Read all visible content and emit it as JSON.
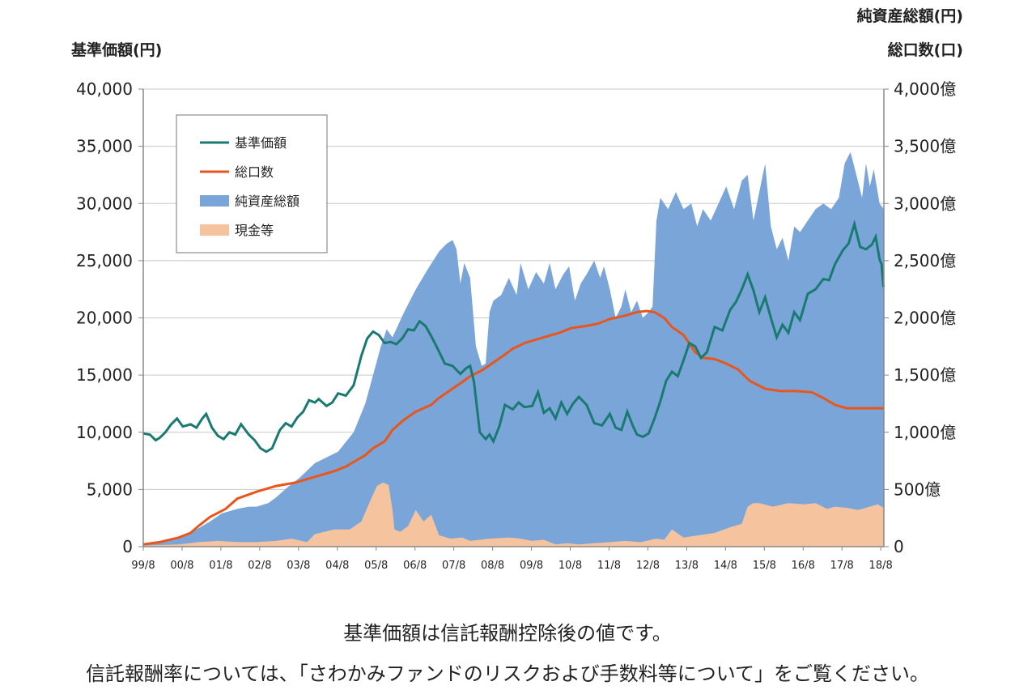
{
  "captions": {
    "line1": "基準価額は信託報酬控除後の値です。",
    "line2": "信託報酬率については、「さわかみファンドのリスクおよび手数料等について」をご覧ください。"
  },
  "chart_data": {
    "type": "area",
    "left_axis_title": "基準価額(円)",
    "right_axis_title_1": "純資産総額(円)",
    "right_axis_title_2": "総口数(口)",
    "ylim_left": [
      0,
      40000
    ],
    "ylim_right": [
      0,
      4000
    ],
    "left_ticks": [
      "0",
      "5,000",
      "10,000",
      "15,000",
      "20,000",
      "25,000",
      "30,000",
      "35,000",
      "40,000"
    ],
    "right_ticks": [
      "0",
      "500億",
      "1,000億",
      "1,500億",
      "2,000億",
      "2,500億",
      "3,000億",
      "3,500億",
      "4,000億"
    ],
    "x_ticks": [
      "99/8",
      "00/8",
      "01/8",
      "02/8",
      "03/8",
      "04/8",
      "05/8",
      "06/8",
      "07/8",
      "08/8",
      "09/8",
      "10/8",
      "11/8",
      "12/8",
      "13/8",
      "14/8",
      "15/8",
      "16/8",
      "17/8",
      "18/8"
    ],
    "grid": true,
    "legend_position": "top-left",
    "colors": {
      "nav": "#1a7a72",
      "units": "#e8561c",
      "assets": "#7aa5d8",
      "cash": "#f5c49e",
      "grid": "#c8c8c8"
    },
    "series": [
      {
        "name": "基準価額",
        "axis": "left",
        "kind": "line",
        "x": [
          1999.58,
          1999.75,
          1999.9,
          2000.0,
          2000.15,
          2000.3,
          2000.45,
          2000.6,
          2000.8,
          2000.95,
          2001.1,
          2001.2,
          2001.35,
          2001.5,
          2001.65,
          2001.8,
          2001.95,
          2002.1,
          2002.3,
          2002.45,
          2002.6,
          2002.75,
          2002.9,
          2003.1,
          2003.25,
          2003.4,
          2003.55,
          2003.7,
          2003.85,
          2004.0,
          2004.1,
          2004.3,
          2004.45,
          2004.6,
          2004.8,
          2005.0,
          2005.2,
          2005.35,
          2005.5,
          2005.65,
          2005.8,
          2005.95,
          2006.1,
          2006.25,
          2006.4,
          2006.55,
          2006.7,
          2006.85,
          2007.0,
          2007.15,
          2007.35,
          2007.55,
          2007.75,
          2007.9,
          2008.0,
          2008.1,
          2008.25,
          2008.4,
          2008.5,
          2008.6,
          2008.75,
          2008.9,
          2009.1,
          2009.25,
          2009.4,
          2009.6,
          2009.75,
          2009.9,
          2010.05,
          2010.2,
          2010.35,
          2010.5,
          2010.65,
          2010.8,
          2011.0,
          2011.2,
          2011.4,
          2011.6,
          2011.75,
          2011.9,
          2012.05,
          2012.2,
          2012.3,
          2012.45,
          2012.6,
          2012.75,
          2012.9,
          2013.05,
          2013.2,
          2013.35,
          2013.5,
          2013.65,
          2013.8,
          2013.95,
          2014.1,
          2014.3,
          2014.5,
          2014.7,
          2014.85,
          2015.0,
          2015.15,
          2015.3,
          2015.45,
          2015.6,
          2015.75,
          2015.9,
          2016.05,
          2016.2,
          2016.35,
          2016.5,
          2016.7,
          2016.9,
          2017.1,
          2017.25,
          2017.4,
          2017.6,
          2017.75,
          2017.9,
          2018.05,
          2018.2,
          2018.35,
          2018.45,
          2018.55,
          2018.6,
          2018.65
        ],
        "values": [
          9900,
          9800,
          9300,
          9500,
          10000,
          10700,
          11200,
          10500,
          10700,
          10400,
          11200,
          11600,
          10400,
          9700,
          9400,
          10000,
          9800,
          10700,
          9800,
          9300,
          8600,
          8300,
          8600,
          10200,
          10800,
          10500,
          11300,
          11800,
          12800,
          12600,
          12900,
          12300,
          12600,
          13400,
          13200,
          14100,
          16700,
          18200,
          18800,
          18500,
          17800,
          17900,
          17700,
          18200,
          19000,
          18900,
          19700,
          19300,
          18400,
          17400,
          16000,
          15800,
          15100,
          15600,
          15800,
          14400,
          10000,
          9400,
          9800,
          9200,
          10500,
          12400,
          12000,
          12600,
          12200,
          12300,
          13500,
          11700,
          12100,
          11200,
          12600,
          11600,
          12500,
          13100,
          12400,
          10800,
          10600,
          11600,
          10400,
          10200,
          11800,
          10500,
          9800,
          9600,
          9900,
          11200,
          12700,
          14500,
          15300,
          14900,
          16300,
          17800,
          17500,
          16500,
          17000,
          19200,
          18900,
          20700,
          21400,
          22500,
          23800,
          22400,
          20500,
          21800,
          20000,
          18300,
          19400,
          18700,
          20500,
          19800,
          22100,
          22500,
          23400,
          23300,
          24700,
          25900,
          26500,
          28200,
          26200,
          26000,
          26400,
          27100,
          25100,
          24700,
          22700
        ]
      },
      {
        "name": "総口数",
        "axis": "right",
        "kind": "line",
        "x": [
          1999.58,
          2000.0,
          2000.5,
          2000.8,
          2001.0,
          2001.3,
          2001.7,
          2002.0,
          2002.5,
          2003.0,
          2003.5,
          2004.0,
          2004.5,
          2004.8,
          2005.0,
          2005.3,
          2005.5,
          2005.8,
          2006.0,
          2006.3,
          2006.6,
          2007.0,
          2007.2,
          2007.5,
          2007.8,
          2008.0,
          2008.3,
          2008.6,
          2008.9,
          2009.1,
          2009.4,
          2009.7,
          2010.0,
          2010.3,
          2010.6,
          2011.0,
          2011.3,
          2011.6,
          2012.0,
          2012.3,
          2012.55,
          2012.75,
          2013.0,
          2013.2,
          2013.5,
          2013.8,
          2014.0,
          2014.3,
          2014.6,
          2014.9,
          2015.2,
          2015.6,
          2016.0,
          2016.4,
          2016.8,
          2017.1,
          2017.4,
          2017.7,
          2018.0,
          2018.3,
          2018.66
        ],
        "values": [
          20,
          40,
          80,
          120,
          180,
          260,
          330,
          420,
          480,
          530,
          560,
          610,
          660,
          700,
          740,
          800,
          860,
          920,
          1020,
          1110,
          1180,
          1240,
          1300,
          1370,
          1440,
          1490,
          1540,
          1610,
          1680,
          1730,
          1780,
          1810,
          1840,
          1870,
          1910,
          1930,
          1950,
          1990,
          2020,
          2050,
          2060,
          2050,
          2000,
          1920,
          1850,
          1700,
          1650,
          1640,
          1600,
          1550,
          1450,
          1380,
          1360,
          1360,
          1350,
          1300,
          1240,
          1210,
          1210,
          1210,
          1210
        ]
      },
      {
        "name": "純資産総額",
        "axis": "right",
        "kind": "area",
        "x": [
          1999.58,
          2000.0,
          2000.3,
          2000.5,
          2000.8,
          2001.0,
          2001.3,
          2001.6,
          2002.0,
          2002.3,
          2002.5,
          2002.8,
          2003.0,
          2003.3,
          2003.6,
          2004.0,
          2004.3,
          2004.6,
          2005.0,
          2005.3,
          2005.5,
          2005.7,
          2005.85,
          2006.0,
          2006.3,
          2006.6,
          2006.9,
          2007.2,
          2007.4,
          2007.55,
          2007.65,
          2007.75,
          2007.85,
          2008.0,
          2008.15,
          2008.3,
          2008.4,
          2008.5,
          2008.6,
          2008.8,
          2009.0,
          2009.2,
          2009.3,
          2009.5,
          2009.7,
          2009.9,
          2010.05,
          2010.2,
          2010.4,
          2010.55,
          2010.7,
          2010.85,
          2011.0,
          2011.2,
          2011.35,
          2011.45,
          2011.6,
          2011.75,
          2011.9,
          2012.0,
          2012.15,
          2012.3,
          2012.45,
          2012.6,
          2012.7,
          2012.8,
          2012.9,
          2013.1,
          2013.3,
          2013.5,
          2013.7,
          2013.85,
          2014.0,
          2014.2,
          2014.4,
          2014.6,
          2014.8,
          2015.0,
          2015.15,
          2015.3,
          2015.45,
          2015.6,
          2015.75,
          2015.9,
          2016.05,
          2016.2,
          2016.35,
          2016.5,
          2016.7,
          2016.9,
          2017.1,
          2017.3,
          2017.5,
          2017.65,
          2017.8,
          2017.95,
          2018.1,
          2018.2,
          2018.3,
          2018.4,
          2018.5,
          2018.55,
          2018.66
        ],
        "values": [
          20,
          40,
          60,
          90,
          120,
          160,
          220,
          290,
          330,
          350,
          350,
          380,
          430,
          520,
          600,
          730,
          780,
          830,
          1000,
          1250,
          1500,
          1750,
          1900,
          1830,
          2050,
          2250,
          2420,
          2580,
          2650,
          2680,
          2600,
          2300,
          2480,
          2350,
          1750,
          1580,
          1600,
          2050,
          2150,
          2200,
          2350,
          2200,
          2480,
          2250,
          2400,
          2300,
          2480,
          2250,
          2380,
          2450,
          2150,
          2300,
          2380,
          2500,
          2350,
          2450,
          2250,
          2000,
          2100,
          2250,
          2050,
          2150,
          2000,
          2050,
          2100,
          2850,
          3050,
          2950,
          3100,
          2950,
          3000,
          2800,
          2950,
          2850,
          3000,
          3150,
          2950,
          3200,
          3250,
          2850,
          3100,
          3350,
          2800,
          2600,
          2700,
          2500,
          2800,
          2750,
          2850,
          2950,
          3000,
          2950,
          3050,
          3350,
          3450,
          3250,
          3050,
          3350,
          3150,
          3300,
          3100,
          3000,
          2950
        ]
      },
      {
        "name": "現金等",
        "axis": "right",
        "kind": "area",
        "x": [
          1999.58,
          2000.5,
          2001.0,
          2001.5,
          2002.0,
          2002.5,
          2003.0,
          2003.4,
          2003.8,
          2004.0,
          2004.5,
          2004.9,
          2005.2,
          2005.45,
          2005.6,
          2005.75,
          2005.9,
          2006.0,
          2006.05,
          2006.2,
          2006.4,
          2006.6,
          2006.8,
          2007.0,
          2007.2,
          2007.5,
          2007.8,
          2008.0,
          2008.5,
          2009.0,
          2009.3,
          2009.6,
          2009.9,
          2010.2,
          2010.5,
          2010.8,
          2011.2,
          2011.6,
          2012.0,
          2012.4,
          2012.8,
          2013.0,
          2013.2,
          2013.5,
          2013.9,
          2014.3,
          2014.7,
          2015.0,
          2015.15,
          2015.3,
          2015.45,
          2015.8,
          2016.2,
          2016.6,
          2016.9,
          2017.2,
          2017.4,
          2017.7,
          2018.0,
          2018.3,
          2018.5,
          2018.66
        ],
        "values": [
          10,
          20,
          40,
          50,
          40,
          40,
          50,
          70,
          40,
          110,
          150,
          150,
          220,
          420,
          530,
          560,
          540,
          320,
          150,
          130,
          180,
          320,
          220,
          280,
          100,
          70,
          80,
          50,
          70,
          80,
          70,
          50,
          60,
          20,
          30,
          20,
          30,
          40,
          50,
          40,
          70,
          60,
          150,
          80,
          100,
          120,
          170,
          200,
          350,
          380,
          380,
          350,
          380,
          370,
          380,
          330,
          350,
          340,
          320,
          350,
          370,
          340
        ]
      }
    ]
  }
}
